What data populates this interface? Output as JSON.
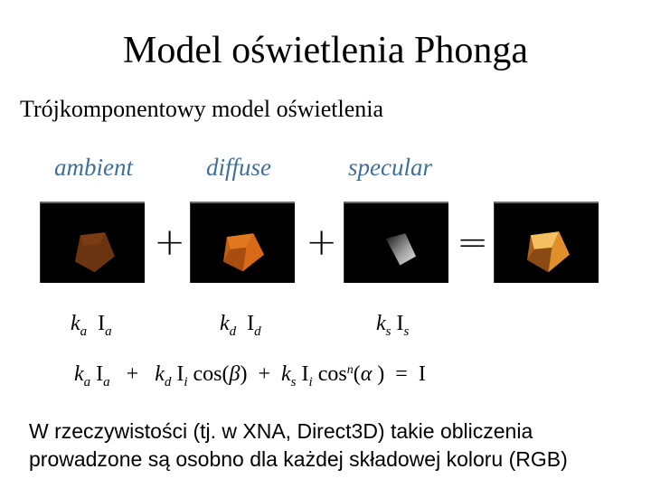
{
  "title": "Model oświetlenia Phonga",
  "subtitle": "Trójkomponentowy model oświetlenia",
  "components": {
    "ambient": {
      "label": "ambient",
      "k": "k",
      "k_sub": "a",
      "i": "I",
      "i_sub": "a"
    },
    "diffuse": {
      "label": "diffuse",
      "k": "k",
      "k_sub": "d",
      "i": "I",
      "i_sub": "d"
    },
    "specular": {
      "label": "specular",
      "k": "k",
      "k_sub": "s",
      "i": "I",
      "i_sub": "s"
    }
  },
  "operators": {
    "plus": "+",
    "equals": "="
  },
  "equation": {
    "t1_k": "k",
    "t1_k_sub": "a",
    "t1_i": "I",
    "t1_i_sub": "a",
    "plus1": "+",
    "t2_k": "k",
    "t2_k_sub": "d",
    "t2_i": "I",
    "t2_i_sub": "i",
    "t2_cos": "cos(",
    "t2_angle": "β",
    "t2_close": ")",
    "plus2": "+",
    "t3_k": "k",
    "t3_k_sub": "s",
    "t3_i": "I",
    "t3_i_sub": "i",
    "t3_cos": "cos",
    "t3_exp": "n",
    "t3_open": "(",
    "t3_angle": "α",
    "t3_close": ")",
    "eq": "=",
    "result": "I"
  },
  "paragraph": {
    "line1": "W rzeczywistości (tj. w XNA, Direct3D) takie obliczenia",
    "line2": "prowadzone są osobno dla każdej składowej koloru (RGB)"
  },
  "colors": {
    "label_color": "#3f6f9a",
    "ambient": "#6b3410",
    "diffuse": "#d86a18",
    "result": "#e0902a"
  }
}
